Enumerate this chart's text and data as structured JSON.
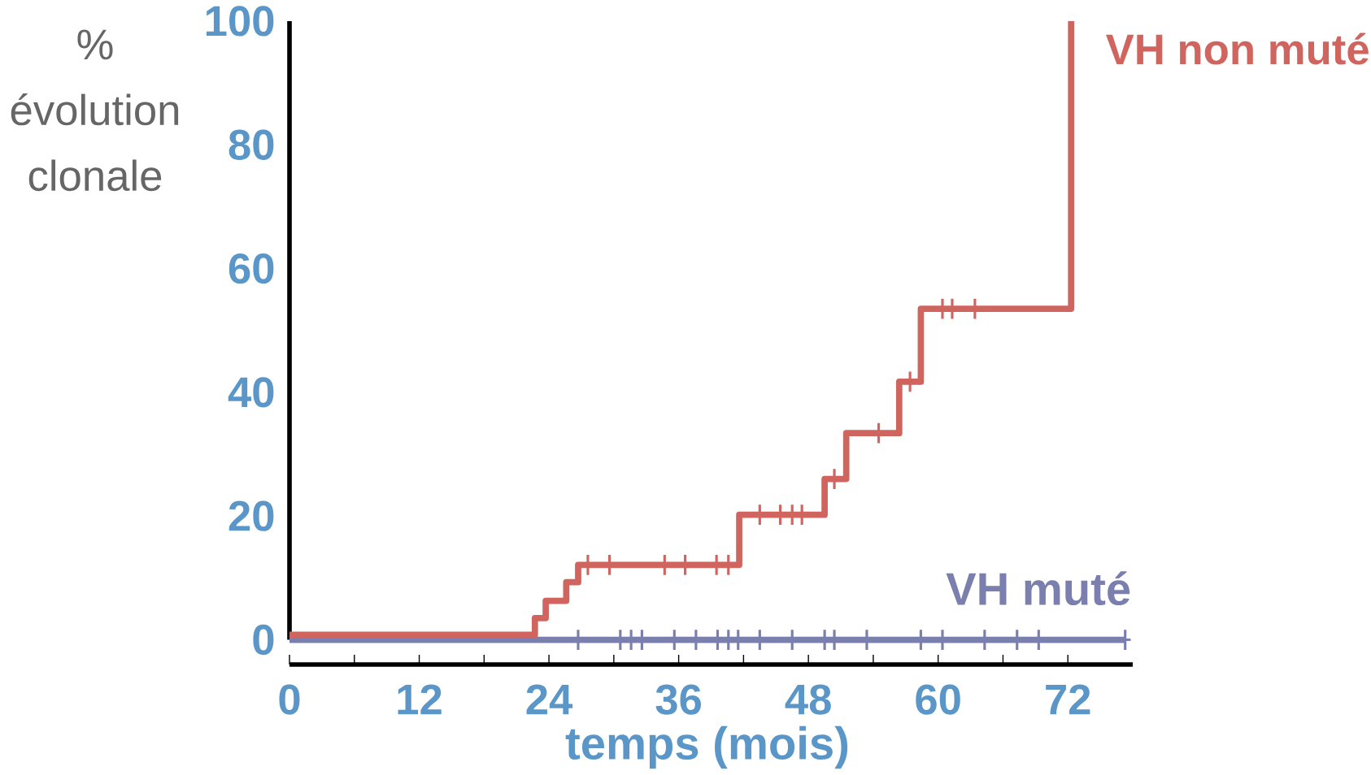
{
  "chart_data": {
    "type": "step",
    "ylabel": "% évolution clonale",
    "xlabel": "temps (mois)",
    "xlim": [
      0,
      78
    ],
    "ylim": [
      -4,
      100
    ],
    "xticks": [
      0,
      {
        "value": 6,
        "label": null
      },
      12,
      {
        "value": 18,
        "label": null
      },
      24,
      {
        "value": 30,
        "label": null
      },
      36,
      {
        "value": 42,
        "label": null
      },
      48,
      {
        "value": 54,
        "label": null
      },
      60,
      {
        "value": 66,
        "label": null
      },
      72
    ],
    "yticks": [
      0,
      20,
      40,
      60,
      80,
      100
    ],
    "legend": false,
    "series": [
      {
        "name": "VH muté",
        "color": "#7a7fad",
        "x": [
          0,
          77.3
        ],
        "values": [
          0,
          0
        ]
      },
      {
        "type": "scatter",
        "marker": "cross",
        "color": "#7a7fad",
        "x": [
          26.7,
          30.6,
          31.6,
          32.6,
          35.6,
          37.6,
          39.6,
          40.6,
          41.5,
          43.5,
          46.5,
          49.5,
          50.4,
          53.4,
          58.4,
          60.4,
          64.3,
          67.3,
          69.3,
          77.3
        ],
        "values": [
          0,
          0,
          0,
          0,
          0,
          0,
          0,
          0,
          0,
          0,
          0,
          0,
          0,
          0,
          0,
          0,
          0,
          0,
          0,
          0
        ]
      },
      {
        "name": "VH non muté",
        "color": "#d0655f",
        "x": [
          0,
          22.7,
          23.7,
          25.6,
          26.7,
          41.6,
          49.5,
          51.5,
          56.4,
          58.4,
          72.3
        ],
        "values": [
          0.8,
          3.5,
          6.3,
          9.3,
          12.1,
          20.2,
          26.0,
          33.4,
          41.7,
          53.5,
          100
        ]
      },
      {
        "type": "scatter",
        "marker": "cross",
        "color": "#d0655f",
        "x": [
          27.6,
          29.6,
          34.7,
          36.6,
          39.5,
          40.6,
          43.5,
          45.4,
          46.5,
          47.4,
          50.4,
          54.5,
          57.4,
          60.4,
          61.3,
          63.4
        ],
        "values": [
          12.1,
          12.1,
          12.1,
          12.1,
          12.1,
          12.1,
          20.2,
          20.2,
          20.2,
          20.2,
          26.0,
          33.4,
          41.7,
          53.5,
          53.5,
          53.5
        ]
      }
    ]
  }
}
